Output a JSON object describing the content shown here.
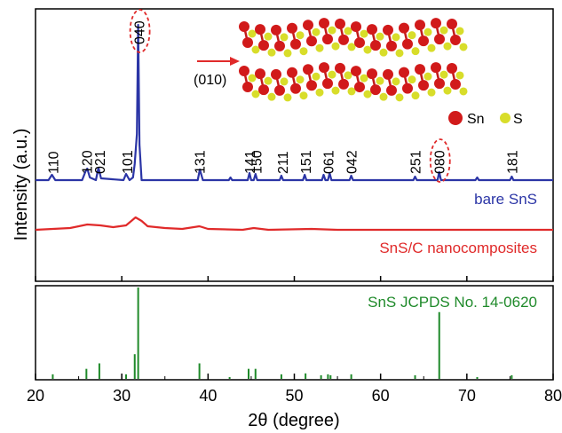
{
  "chart_data": {
    "type": "line",
    "xlabel": "2θ (degree)",
    "ylabel": "Intensity (a.u.)",
    "xlim": [
      20,
      80
    ],
    "xticks": [
      "20",
      "30",
      "40",
      "50",
      "60",
      "70",
      "80"
    ],
    "panels": [
      {
        "panel": "top",
        "series": [
          {
            "name": "bare SnS",
            "color": "#2b35a6",
            "points": [
              [
                20,
                0
              ],
              [
                21.5,
                0
              ],
              [
                21.9,
                6
              ],
              [
                22.3,
                0
              ],
              [
                25.4,
                0
              ],
              [
                25.8,
                10
              ],
              [
                26.0,
                13
              ],
              [
                26.3,
                3
              ],
              [
                27.0,
                0
              ],
              [
                27.3,
                14
              ],
              [
                27.6,
                2
              ],
              [
                30.2,
                0
              ],
              [
                30.5,
                7
              ],
              [
                30.9,
                0
              ],
              [
                31.3,
                3
              ],
              [
                31.5,
                18
              ],
              [
                31.75,
                52
              ],
              [
                31.9,
                175
              ],
              [
                32.05,
                40
              ],
              [
                32.3,
                0
              ],
              [
                38.8,
                0
              ],
              [
                39.05,
                12
              ],
              [
                39.4,
                0
              ],
              [
                42.4,
                0
              ],
              [
                42.6,
                3
              ],
              [
                42.8,
                0
              ],
              [
                44.6,
                0
              ],
              [
                44.8,
                8
              ],
              [
                45.0,
                0
              ],
              [
                45.3,
                0
              ],
              [
                45.5,
                7
              ],
              [
                45.7,
                0
              ],
              [
                48.3,
                0
              ],
              [
                48.5,
                5
              ],
              [
                48.7,
                0
              ],
              [
                51.0,
                0
              ],
              [
                51.2,
                6
              ],
              [
                51.4,
                0
              ],
              [
                53.2,
                0
              ],
              [
                53.4,
                6
              ],
              [
                53.6,
                0
              ],
              [
                53.9,
                0
              ],
              [
                54.1,
                8
              ],
              [
                54.3,
                0
              ],
              [
                56.4,
                0
              ],
              [
                56.6,
                5
              ],
              [
                56.8,
                0
              ],
              [
                63.8,
                0
              ],
              [
                64.0,
                4
              ],
              [
                64.2,
                0
              ],
              [
                66.6,
                0
              ],
              [
                66.8,
                9
              ],
              [
                67.0,
                0
              ],
              [
                71.0,
                0
              ],
              [
                71.2,
                3
              ],
              [
                71.4,
                0
              ],
              [
                75.0,
                0
              ],
              [
                75.2,
                4
              ],
              [
                75.4,
                0
              ],
              [
                80,
                0
              ]
            ]
          },
          {
            "name": "SnS/C nanocomposites",
            "color": "#e02a2a",
            "points": [
              [
                20,
                0
              ],
              [
                22,
                1
              ],
              [
                24,
                2
              ],
              [
                26,
                6
              ],
              [
                27.5,
                5
              ],
              [
                29,
                3
              ],
              [
                30.5,
                5
              ],
              [
                31.6,
                14
              ],
              [
                32.3,
                10
              ],
              [
                33,
                4
              ],
              [
                35,
                2
              ],
              [
                37,
                1
              ],
              [
                39,
                4
              ],
              [
                40,
                1
              ],
              [
                44,
                0
              ],
              [
                45.3,
                2
              ],
              [
                47,
                0
              ],
              [
                52,
                1
              ],
              [
                55,
                0
              ],
              [
                60,
                0
              ],
              [
                66,
                0
              ],
              [
                70,
                0
              ],
              [
                75,
                0
              ],
              [
                80,
                0
              ]
            ]
          }
        ],
        "peak_labels": [
          {
            "x": 22.0,
            "text": "110"
          },
          {
            "x": 25.9,
            "text": "120"
          },
          {
            "x": 27.4,
            "text": "021"
          },
          {
            "x": 30.6,
            "text": "101"
          },
          {
            "x": 32.0,
            "text": "040",
            "highlighted": true
          },
          {
            "x": 39.0,
            "text": "131"
          },
          {
            "x": 44.8,
            "text": "141"
          },
          {
            "x": 45.6,
            "text": "150"
          },
          {
            "x": 48.6,
            "text": "211"
          },
          {
            "x": 51.3,
            "text": "151"
          },
          {
            "x": 53.9,
            "text": "061"
          },
          {
            "x": 56.6,
            "text": "042"
          },
          {
            "x": 64.0,
            "text": "251"
          },
          {
            "x": 66.8,
            "text": "080",
            "highlighted": true
          },
          {
            "x": 75.2,
            "text": "181"
          }
        ],
        "annotations": {
          "direction": "(010)",
          "legend_sn": "Sn",
          "legend_s": "S",
          "sn_color": "#d11a1a",
          "s_color": "#d8dd2a",
          "arrow_color": "#e02a2a"
        }
      },
      {
        "panel": "bottom",
        "type": "bar",
        "series": [
          {
            "name": "SnS JCPDS No. 14-0620",
            "color": "#1f8a2a",
            "points": [
              [
                22.0,
                5
              ],
              [
                25.9,
                11
              ],
              [
                27.4,
                17
              ],
              [
                30.5,
                5
              ],
              [
                31.5,
                27
              ],
              [
                31.9,
                100
              ],
              [
                39.0,
                17
              ],
              [
                42.5,
                2
              ],
              [
                44.7,
                11
              ],
              [
                45.5,
                11
              ],
              [
                48.5,
                5
              ],
              [
                51.3,
                6
              ],
              [
                53.1,
                4
              ],
              [
                53.9,
                5
              ],
              [
                54.2,
                4
              ],
              [
                56.6,
                5
              ],
              [
                64.0,
                4
              ],
              [
                66.8,
                73
              ],
              [
                71.2,
                2
              ],
              [
                75.2,
                4
              ]
            ]
          }
        ]
      }
    ]
  }
}
